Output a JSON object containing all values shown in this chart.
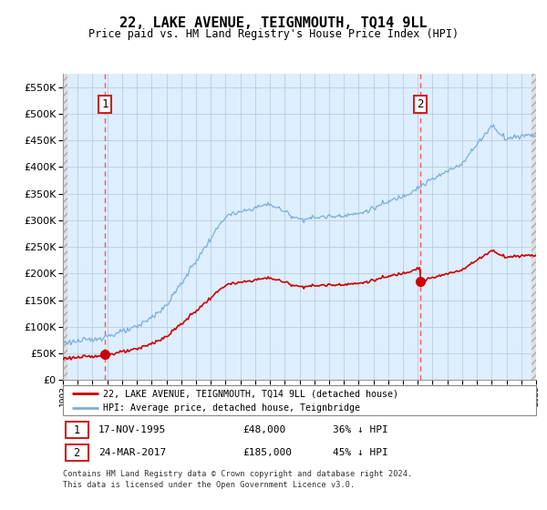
{
  "title": "22, LAKE AVENUE, TEIGNMOUTH, TQ14 9LL",
  "subtitle": "Price paid vs. HM Land Registry's House Price Index (HPI)",
  "sale1_price": 48000,
  "sale1_t": 1995.833,
  "sale2_price": 185000,
  "sale2_t": 2017.167,
  "hpi_line_color": "#7aaddd",
  "hpi_fill_color": "#ddeeff",
  "price_line_color": "#cc0000",
  "sale_marker_color": "#cc0000",
  "vline_color": "#ff5555",
  "hatch_color": "#dddddd",
  "grid_color": "#bbccdd",
  "ylim": [
    0,
    575000
  ],
  "xlim_start": 1993,
  "xlim_end": 2025,
  "legend_label1": "22, LAKE AVENUE, TEIGNMOUTH, TQ14 9LL (detached house)",
  "legend_label2": "HPI: Average price, detached house, Teignbridge",
  "table_row1": [
    "1",
    "17-NOV-1995",
    "£48,000",
    "36% ↓ HPI"
  ],
  "table_row2": [
    "2",
    "24-MAR-2017",
    "£185,000",
    "45% ↓ HPI"
  ],
  "footnote1": "Contains HM Land Registry data © Crown copyright and database right 2024.",
  "footnote2": "This data is licensed under the Open Government Licence v3.0."
}
